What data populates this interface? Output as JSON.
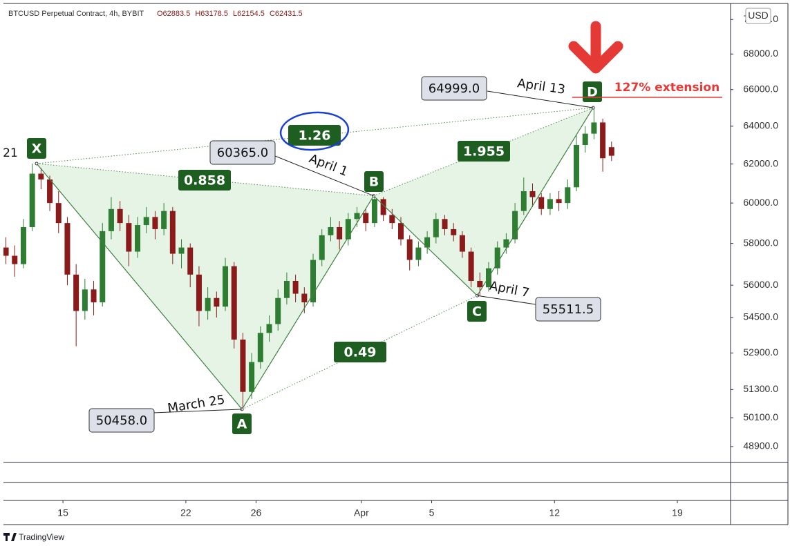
{
  "chart_data": {
    "type": "candlestick",
    "title": "BTCUSD Perpetual Contract, 4h, BYBIT",
    "header_values": [
      "O62883.5",
      "H63178.5",
      "L62154.5",
      "C62431.5"
    ],
    "currency": "USD",
    "brand": "TradingView",
    "log": true,
    "up_color": "#2e7d32",
    "down_color": "#8b1a1a",
    "xlim": [
      11.61,
      53.03
    ],
    "xticks": [
      15,
      22,
      26,
      {
        "value": 32,
        "label": "Apr"
      },
      {
        "value": 36,
        "label": "5"
      },
      {
        "value": 43,
        "label": "12"
      },
      {
        "value": 50,
        "label": "19"
      }
    ],
    "ylim": [
      48252,
      70950
    ],
    "yticks": [
      {
        "value": 48900,
        "label": "48900.0"
      },
      {
        "value": 50100,
        "label": "50100.0"
      },
      {
        "value": 51300,
        "label": "51300.0"
      },
      {
        "value": 52900,
        "label": "52900.0"
      },
      {
        "value": 54500,
        "label": "54500.0"
      },
      {
        "value": 56000,
        "label": "56000.0"
      },
      {
        "value": 58000,
        "label": "58000.0"
      },
      {
        "value": 60000,
        "label": "60000.0"
      },
      {
        "value": 62000,
        "label": "62000.0"
      },
      {
        "value": 64000,
        "label": "64000.0"
      },
      {
        "value": 66000,
        "label": "66000.0"
      },
      {
        "value": 68000,
        "label": "68000.0"
      },
      {
        "value": 70000,
        "label": "70000.0"
      }
    ],
    "candles": {
      "x": [
        11.75,
        12.25,
        12.75,
        13.25,
        13.75,
        14.25,
        14.75,
        15.25,
        15.75,
        16.25,
        16.75,
        17.25,
        17.75,
        18.25,
        18.75,
        19.25,
        19.75,
        20.25,
        20.75,
        21.25,
        21.75,
        22.25,
        22.75,
        23.25,
        23.75,
        24.25,
        24.75,
        25.25,
        25.75,
        26.25,
        26.75,
        27.25,
        27.75,
        28.25,
        28.75,
        29.25,
        29.75,
        30.25,
        30.75,
        31.25,
        31.75,
        32.25,
        32.75,
        33.25,
        33.75,
        34.25,
        34.75,
        35.25,
        35.75,
        36.25,
        36.75,
        37.25,
        37.75,
        38.25,
        38.75,
        39.25,
        39.75,
        40.25,
        40.75,
        41.25,
        41.75,
        42.25,
        42.75,
        43.25,
        43.75,
        44.25,
        44.75,
        45.25,
        45.75,
        46.25
      ],
      "open": [
        57800,
        57400,
        57000,
        58800,
        61500,
        61200,
        60000,
        59000,
        56500,
        54800,
        55800,
        55200,
        58600,
        59700,
        59000,
        57600,
        58900,
        59300,
        58700,
        59600,
        57500,
        57800,
        56500,
        54800,
        55400,
        55000,
        56900,
        53500,
        51200,
        52500,
        53800,
        54200,
        55400,
        56200,
        55600,
        55200,
        57200,
        58400,
        58800,
        58200,
        59200,
        59500,
        59000,
        60200,
        59400,
        59000,
        58200,
        57200,
        57800,
        58300,
        59200,
        58700,
        58400,
        57600,
        56200,
        55900,
        56800,
        57800,
        58200,
        59600,
        60600,
        60300,
        59700,
        60200,
        60000,
        60800,
        63000,
        63600,
        64200,
        62883.5
      ],
      "high": [
        58300,
        57900,
        59200,
        62021,
        61800,
        61400,
        60600,
        59300,
        57000,
        56300,
        56200,
        59000,
        60300,
        60100,
        59400,
        59300,
        59800,
        59600,
        60000,
        59800,
        58200,
        58000,
        56900,
        55900,
        55700,
        57300,
        57100,
        53800,
        52900,
        54100,
        54600,
        55800,
        56600,
        56500,
        55900,
        57500,
        58700,
        59300,
        59100,
        59500,
        59800,
        59700,
        60365,
        60300,
        59700,
        59300,
        58400,
        58100,
        58600,
        59500,
        59400,
        59000,
        58600,
        57800,
        56600,
        57100,
        58100,
        58500,
        60000,
        61300,
        61000,
        60500,
        60500,
        60600,
        61200,
        63500,
        64000,
        64999,
        64400,
        63178.5
      ],
      "low": [
        57000,
        56400,
        56800,
        58600,
        60700,
        59600,
        58500,
        56000,
        53200,
        54400,
        54600,
        55000,
        58200,
        58600,
        56900,
        57300,
        58500,
        58200,
        58400,
        57000,
        56800,
        55900,
        54100,
        54400,
        54500,
        54800,
        53100,
        50458,
        50900,
        52200,
        53400,
        53900,
        55100,
        55200,
        54700,
        55000,
        56900,
        58100,
        57700,
        57900,
        58800,
        58600,
        58800,
        59100,
        58700,
        57900,
        56700,
        56900,
        57500,
        58000,
        58400,
        58100,
        57300,
        55900,
        55511.5,
        55700,
        56500,
        57500,
        58000,
        59400,
        59800,
        59400,
        59400,
        59600,
        59700,
        60600,
        62600,
        63300,
        61600,
        62154.5
      ],
      "close": [
        57400,
        57000,
        58800,
        61500,
        61200,
        60000,
        59000,
        56500,
        54800,
        55800,
        55200,
        58600,
        59700,
        59000,
        57600,
        58900,
        59300,
        58700,
        59600,
        57500,
        57800,
        56500,
        54800,
        55400,
        55000,
        56900,
        53500,
        51200,
        52500,
        53800,
        54200,
        55400,
        56200,
        55600,
        55200,
        57200,
        58400,
        58800,
        58200,
        59200,
        59500,
        59000,
        60200,
        59400,
        59000,
        58200,
        57200,
        57800,
        58300,
        59200,
        58700,
        58400,
        57600,
        56200,
        55900,
        56800,
        57800,
        58200,
        59600,
        60600,
        60300,
        59700,
        60200,
        60000,
        60800,
        63000,
        63600,
        64200,
        62300,
        62431.5
      ]
    },
    "pattern": {
      "points": [
        {
          "name": "X",
          "x": 13.5,
          "y": 62021,
          "label": "21"
        },
        {
          "name": "A",
          "x": 25.2,
          "y": 50458,
          "label": "50458.0",
          "date": "March 25"
        },
        {
          "name": "B",
          "x": 32.7,
          "y": 60365,
          "label": "60365.0",
          "date": "April 1"
        },
        {
          "name": "C",
          "x": 38.6,
          "y": 55511.5,
          "label": "55511.5",
          "date": "April 7"
        },
        {
          "name": "D",
          "x": 45.2,
          "y": 64999,
          "label": "64999.0",
          "date": "April 13"
        }
      ],
      "ratios": [
        "0.858",
        "0.49",
        "1.955",
        "1.26"
      ],
      "color": "#1e5e20",
      "fill": "rgba(76,175,80,0.14)"
    },
    "annotation": "127% extension"
  }
}
